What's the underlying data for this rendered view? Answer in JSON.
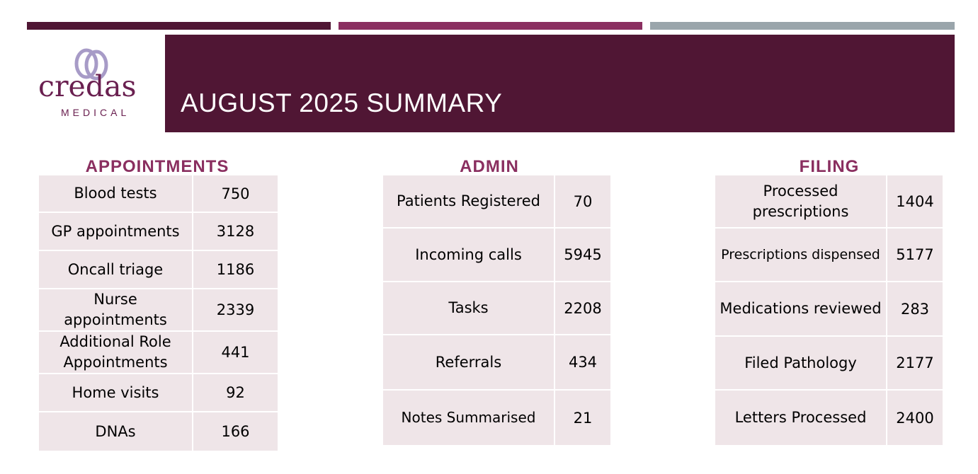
{
  "colors": {
    "primary": "#501634",
    "accent": "#8a2f60",
    "grey": "#9aa5ab",
    "cell_bg": "#efe5e8",
    "logo_purple": "#6a2050",
    "logo_ring": "#a79bc7"
  },
  "logo": {
    "wordmark": "credas",
    "sub": "MEDICAL"
  },
  "header": {
    "title": "AUGUST 2025 SUMMARY"
  },
  "sections": [
    {
      "heading": "APPOINTMENTS",
      "rows": [
        {
          "label": "Blood tests",
          "value": "750"
        },
        {
          "label": "GP appointments",
          "value": "3128"
        },
        {
          "label": "Oncall triage",
          "value": "1186"
        },
        {
          "label": "Nurse appointments",
          "value": "2339"
        },
        {
          "label": "Additional Role Appointments",
          "value": "441"
        },
        {
          "label": "Home visits",
          "value": "92"
        },
        {
          "label": "DNAs",
          "value": "166"
        }
      ]
    },
    {
      "heading": "ADMIN",
      "rows": [
        {
          "label": "Patients Registered",
          "value": "70"
        },
        {
          "label": "Incoming calls",
          "value": "5945"
        },
        {
          "label": "Tasks",
          "value": "2208"
        },
        {
          "label": "Referrals",
          "value": "434"
        },
        {
          "label": "Notes Summarised",
          "value": "21"
        }
      ]
    },
    {
      "heading": "FILING",
      "rows": [
        {
          "label": "Processed prescriptions",
          "value": "1404"
        },
        {
          "label": "Prescriptions dispensed",
          "value": "5177"
        },
        {
          "label": "Medications reviewed",
          "value": "283"
        },
        {
          "label": "Filed Pathology",
          "value": "2177"
        },
        {
          "label": "Letters Processed",
          "value": "2400"
        }
      ]
    }
  ]
}
